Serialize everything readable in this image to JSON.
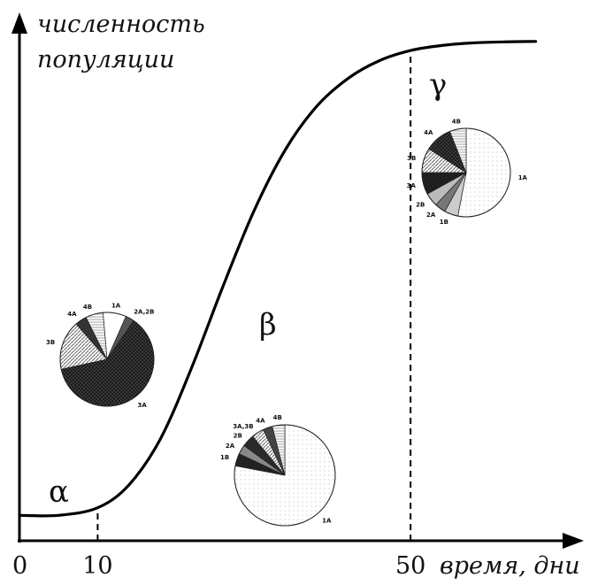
{
  "chart_data": {
    "type": "line",
    "ylabel_line1": "численность",
    "ylabel_line2": "популяции",
    "xlabel": "время, дни",
    "xticks": [
      {
        "value": 0,
        "label": "0"
      },
      {
        "value": 10,
        "label": "10"
      },
      {
        "value": 50,
        "label": "50"
      }
    ],
    "xlim": [
      0,
      70
    ],
    "ylim": [
      0,
      1
    ],
    "curve": {
      "x": [
        0,
        5,
        10,
        14,
        18,
        22,
        26,
        30,
        34,
        38,
        42,
        46,
        50,
        54,
        58,
        62,
        66
      ],
      "y": [
        0.05,
        0.05,
        0.065,
        0.11,
        0.2,
        0.34,
        0.5,
        0.65,
        0.77,
        0.855,
        0.91,
        0.945,
        0.965,
        0.975,
        0.98,
        0.982,
        0.983
      ]
    },
    "dividers": [
      10,
      50
    ],
    "phases": [
      {
        "symbol": "α"
      },
      {
        "symbol": "β"
      },
      {
        "symbol": "γ"
      }
    ],
    "pies": [
      {
        "name": "pie-alpha",
        "slices": [
          {
            "label": "1A",
            "value": 8,
            "fill": "#ffffff"
          },
          {
            "label": "2A,2B",
            "value": 3,
            "fill": "#555555"
          },
          {
            "label": "3A",
            "value": 62,
            "fill": "#1c1c1c"
          },
          {
            "label": "3B",
            "value": 17,
            "fill": "#bdbdbd"
          },
          {
            "label": "4A",
            "value": 4,
            "fill": "#333333"
          },
          {
            "label": "4B",
            "value": 6,
            "fill": "#e8e8e8"
          }
        ]
      },
      {
        "name": "pie-beta",
        "slices": [
          {
            "label": "1A",
            "value": 78,
            "fill": "#f4f4f4"
          },
          {
            "label": "1B",
            "value": 4,
            "fill": "#222222"
          },
          {
            "label": "2A",
            "value": 3,
            "fill": "#888888"
          },
          {
            "label": "2B",
            "value": 4,
            "fill": "#2a2a2a"
          },
          {
            "label": "3A,3B",
            "value": 4,
            "fill": "#cfcfcf"
          },
          {
            "label": "4A",
            "value": 3,
            "fill": "#444444"
          },
          {
            "label": "4B",
            "value": 4,
            "fill": "#dddddd"
          }
        ]
      },
      {
        "name": "pie-gamma",
        "slices": [
          {
            "label": "1A",
            "value": 53,
            "fill": "#f2f2f2"
          },
          {
            "label": "1B",
            "value": 5,
            "fill": "#cccccc"
          },
          {
            "label": "2A",
            "value": 4,
            "fill": "#777777"
          },
          {
            "label": "2B",
            "value": 5,
            "fill": "#bbbbbb"
          },
          {
            "label": "3A",
            "value": 8,
            "fill": "#1e1e1e"
          },
          {
            "label": "3B",
            "value": 9,
            "fill": "#a9a9a9"
          },
          {
            "label": "4A",
            "value": 10,
            "fill": "#2e2e2e"
          },
          {
            "label": "4B",
            "value": 6,
            "fill": "#e6e6e6"
          }
        ]
      }
    ]
  }
}
